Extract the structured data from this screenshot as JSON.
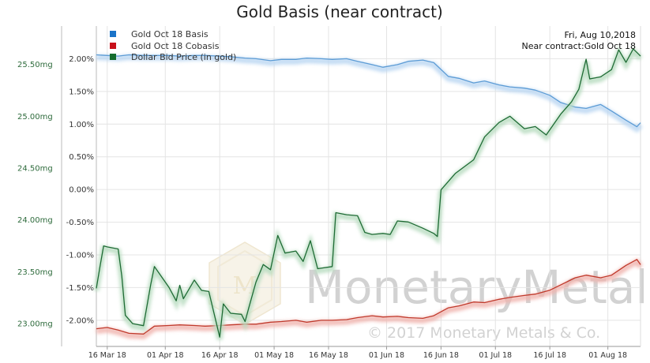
{
  "chart_data": {
    "type": "line",
    "title": "Gold Basis (near contract)",
    "info": {
      "date": "Fri, Aug 10,2018",
      "near_contract": "Near contract:Gold Oct 18"
    },
    "watermark": {
      "name": "MonetaryMetals",
      "copyright": "© 2017 Monetary Metals & Co."
    },
    "x_range": [
      "2018-03-13",
      "2018-08-10"
    ],
    "x_ticks": [
      {
        "date": "2018-03-16",
        "label": "16 Mar 18"
      },
      {
        "date": "2018-04-01",
        "label": "01 Apr 18"
      },
      {
        "date": "2018-04-16",
        "label": "16 Apr 18"
      },
      {
        "date": "2018-05-01",
        "label": "01 May 18"
      },
      {
        "date": "2018-05-16",
        "label": "16 May 18"
      },
      {
        "date": "2018-06-01",
        "label": "01 Jun 18"
      },
      {
        "date": "2018-06-16",
        "label": "16 Jun 18"
      },
      {
        "date": "2018-07-01",
        "label": "01 Jul 18"
      },
      {
        "date": "2018-07-16",
        "label": "16 Jul 18"
      },
      {
        "date": "2018-08-01",
        "label": "01 Aug 18"
      }
    ],
    "y_percent": {
      "range": [
        -2.4,
        2.5
      ],
      "ticks": [
        {
          "v": 2.0,
          "label": "2.00%"
        },
        {
          "v": 1.5,
          "label": "1.50%"
        },
        {
          "v": 1.0,
          "label": "1.00%"
        },
        {
          "v": 0.5,
          "label": "0.50%"
        },
        {
          "v": 0.0,
          "label": "0.00%"
        },
        {
          "v": -0.5,
          "label": "-0.50%"
        },
        {
          "v": -1.0,
          "label": "-1.00%"
        },
        {
          "v": -1.5,
          "label": "-1.50%"
        },
        {
          "v": -2.0,
          "label": "-2.00%"
        }
      ]
    },
    "y_mg": {
      "range": [
        22.78,
        25.87
      ],
      "ticks": [
        {
          "v": 25.5,
          "label": "25.50mg"
        },
        {
          "v": 25.0,
          "label": "25.00mg"
        },
        {
          "v": 24.5,
          "label": "24.50mg"
        },
        {
          "v": 24.0,
          "label": "24.00mg"
        },
        {
          "v": 23.5,
          "label": "23.50mg"
        },
        {
          "v": 23.0,
          "label": "23.00mg"
        }
      ]
    },
    "grid": true,
    "legend_position": "top-left",
    "series": [
      {
        "name": "Gold Oct 18 Basis",
        "axis": "percent",
        "color": "#5b9bd5",
        "glow": "#b9d6f2",
        "points": [
          [
            "2018-03-13",
            2.06
          ],
          [
            "2018-03-16",
            2.05
          ],
          [
            "2018-03-19",
            2.04
          ],
          [
            "2018-03-22",
            2.06
          ],
          [
            "2018-03-26",
            2.05
          ],
          [
            "2018-03-29",
            2.05
          ],
          [
            "2018-04-02",
            2.05
          ],
          [
            "2018-04-05",
            2.04
          ],
          [
            "2018-04-09",
            2.05
          ],
          [
            "2018-04-12",
            2.05
          ],
          [
            "2018-04-16",
            2.04
          ],
          [
            "2018-04-19",
            2.03
          ],
          [
            "2018-04-23",
            2.01
          ],
          [
            "2018-04-26",
            2.0
          ],
          [
            "2018-04-30",
            1.97
          ],
          [
            "2018-05-03",
            1.99
          ],
          [
            "2018-05-07",
            1.99
          ],
          [
            "2018-05-10",
            2.01
          ],
          [
            "2018-05-14",
            2.0
          ],
          [
            "2018-05-17",
            1.99
          ],
          [
            "2018-05-21",
            2.0
          ],
          [
            "2018-05-24",
            1.96
          ],
          [
            "2018-05-28",
            1.91
          ],
          [
            "2018-05-31",
            1.87
          ],
          [
            "2018-06-04",
            1.91
          ],
          [
            "2018-06-07",
            1.96
          ],
          [
            "2018-06-11",
            1.98
          ],
          [
            "2018-06-14",
            1.94
          ],
          [
            "2018-06-18",
            1.73
          ],
          [
            "2018-06-21",
            1.7
          ],
          [
            "2018-06-25",
            1.63
          ],
          [
            "2018-06-28",
            1.66
          ],
          [
            "2018-07-02",
            1.6
          ],
          [
            "2018-07-05",
            1.57
          ],
          [
            "2018-07-09",
            1.55
          ],
          [
            "2018-07-12",
            1.52
          ],
          [
            "2018-07-16",
            1.44
          ],
          [
            "2018-07-19",
            1.33
          ],
          [
            "2018-07-23",
            1.26
          ],
          [
            "2018-07-26",
            1.24
          ],
          [
            "2018-07-30",
            1.3
          ],
          [
            "2018-08-02",
            1.2
          ],
          [
            "2018-08-06",
            1.06
          ],
          [
            "2018-08-09",
            0.96
          ],
          [
            "2018-08-10",
            1.02
          ]
        ]
      },
      {
        "name": "Gold Oct 18 Cobasis",
        "axis": "percent",
        "color": "#c0392b",
        "glow": "#f0b3ad",
        "points": [
          [
            "2018-03-13",
            -2.13
          ],
          [
            "2018-03-16",
            -2.11
          ],
          [
            "2018-03-19",
            -2.15
          ],
          [
            "2018-03-22",
            -2.2
          ],
          [
            "2018-03-26",
            -2.21
          ],
          [
            "2018-03-29",
            -2.09
          ],
          [
            "2018-04-02",
            -2.08
          ],
          [
            "2018-04-05",
            -2.07
          ],
          [
            "2018-04-09",
            -2.08
          ],
          [
            "2018-04-12",
            -2.09
          ],
          [
            "2018-04-16",
            -2.08
          ],
          [
            "2018-04-19",
            -2.07
          ],
          [
            "2018-04-23",
            -2.06
          ],
          [
            "2018-04-26",
            -2.06
          ],
          [
            "2018-04-30",
            -2.03
          ],
          [
            "2018-05-03",
            -2.02
          ],
          [
            "2018-05-07",
            -2.0
          ],
          [
            "2018-05-10",
            -2.03
          ],
          [
            "2018-05-14",
            -2.0
          ],
          [
            "2018-05-17",
            -2.0
          ],
          [
            "2018-05-21",
            -1.99
          ],
          [
            "2018-05-24",
            -1.96
          ],
          [
            "2018-05-28",
            -1.93
          ],
          [
            "2018-05-31",
            -1.95
          ],
          [
            "2018-06-04",
            -1.94
          ],
          [
            "2018-06-07",
            -1.96
          ],
          [
            "2018-06-11",
            -1.97
          ],
          [
            "2018-06-14",
            -1.93
          ],
          [
            "2018-06-18",
            -1.81
          ],
          [
            "2018-06-21",
            -1.78
          ],
          [
            "2018-06-25",
            -1.72
          ],
          [
            "2018-06-28",
            -1.73
          ],
          [
            "2018-07-02",
            -1.68
          ],
          [
            "2018-07-05",
            -1.65
          ],
          [
            "2018-07-09",
            -1.62
          ],
          [
            "2018-07-12",
            -1.6
          ],
          [
            "2018-07-16",
            -1.54
          ],
          [
            "2018-07-19",
            -1.46
          ],
          [
            "2018-07-23",
            -1.35
          ],
          [
            "2018-07-26",
            -1.31
          ],
          [
            "2018-07-30",
            -1.35
          ],
          [
            "2018-08-02",
            -1.31
          ],
          [
            "2018-08-06",
            -1.16
          ],
          [
            "2018-08-09",
            -1.07
          ],
          [
            "2018-08-10",
            -1.15
          ]
        ]
      },
      {
        "name": "Dollar Bid Price (in gold)",
        "axis": "mg",
        "color": "#1e6b34",
        "glow": "#b8dcc0",
        "points": [
          [
            "2018-03-13",
            23.34
          ],
          [
            "2018-03-14",
            23.55
          ],
          [
            "2018-03-15",
            23.75
          ],
          [
            "2018-03-16",
            23.74
          ],
          [
            "2018-03-19",
            23.72
          ],
          [
            "2018-03-20",
            23.46
          ],
          [
            "2018-03-21",
            23.08
          ],
          [
            "2018-03-23",
            23.0
          ],
          [
            "2018-03-26",
            22.98
          ],
          [
            "2018-03-28",
            23.38
          ],
          [
            "2018-03-29",
            23.55
          ],
          [
            "2018-04-02",
            23.35
          ],
          [
            "2018-04-04",
            23.22
          ],
          [
            "2018-04-05",
            23.37
          ],
          [
            "2018-04-06",
            23.24
          ],
          [
            "2018-04-09",
            23.42
          ],
          [
            "2018-04-11",
            23.32
          ],
          [
            "2018-04-13",
            23.31
          ],
          [
            "2018-04-16",
            22.87
          ],
          [
            "2018-04-17",
            23.19
          ],
          [
            "2018-04-19",
            23.1
          ],
          [
            "2018-04-22",
            23.09
          ],
          [
            "2018-04-23",
            23.02
          ],
          [
            "2018-04-24",
            23.15
          ],
          [
            "2018-04-26",
            23.4
          ],
          [
            "2018-04-28",
            23.57
          ],
          [
            "2018-04-30",
            23.52
          ],
          [
            "2018-05-02",
            23.85
          ],
          [
            "2018-05-04",
            23.68
          ],
          [
            "2018-05-07",
            23.7
          ],
          [
            "2018-05-09",
            23.6
          ],
          [
            "2018-05-11",
            23.8
          ],
          [
            "2018-05-13",
            23.53
          ],
          [
            "2018-05-17",
            23.55
          ],
          [
            "2018-05-18",
            24.07
          ],
          [
            "2018-05-21",
            24.05
          ],
          [
            "2018-05-24",
            24.04
          ],
          [
            "2018-05-26",
            23.88
          ],
          [
            "2018-05-28",
            23.86
          ],
          [
            "2018-05-31",
            23.87
          ],
          [
            "2018-06-02",
            23.86
          ],
          [
            "2018-06-04",
            23.99
          ],
          [
            "2018-06-07",
            23.98
          ],
          [
            "2018-06-11",
            23.92
          ],
          [
            "2018-06-14",
            23.87
          ],
          [
            "2018-06-15",
            23.84
          ],
          [
            "2018-06-16",
            24.29
          ],
          [
            "2018-06-20",
            24.45
          ],
          [
            "2018-06-25",
            24.58
          ],
          [
            "2018-06-28",
            24.8
          ],
          [
            "2018-07-02",
            24.94
          ],
          [
            "2018-07-05",
            25.0
          ],
          [
            "2018-07-09",
            24.88
          ],
          [
            "2018-07-12",
            24.9
          ],
          [
            "2018-07-15",
            24.82
          ],
          [
            "2018-07-19",
            25.02
          ],
          [
            "2018-07-22",
            25.14
          ],
          [
            "2018-07-24",
            25.26
          ],
          [
            "2018-07-26",
            25.55
          ],
          [
            "2018-07-27",
            25.36
          ],
          [
            "2018-07-30",
            25.38
          ],
          [
            "2018-08-02",
            25.45
          ],
          [
            "2018-08-04",
            25.64
          ],
          [
            "2018-08-06",
            25.52
          ],
          [
            "2018-08-08",
            25.65
          ],
          [
            "2018-08-10",
            25.58
          ]
        ]
      }
    ]
  }
}
